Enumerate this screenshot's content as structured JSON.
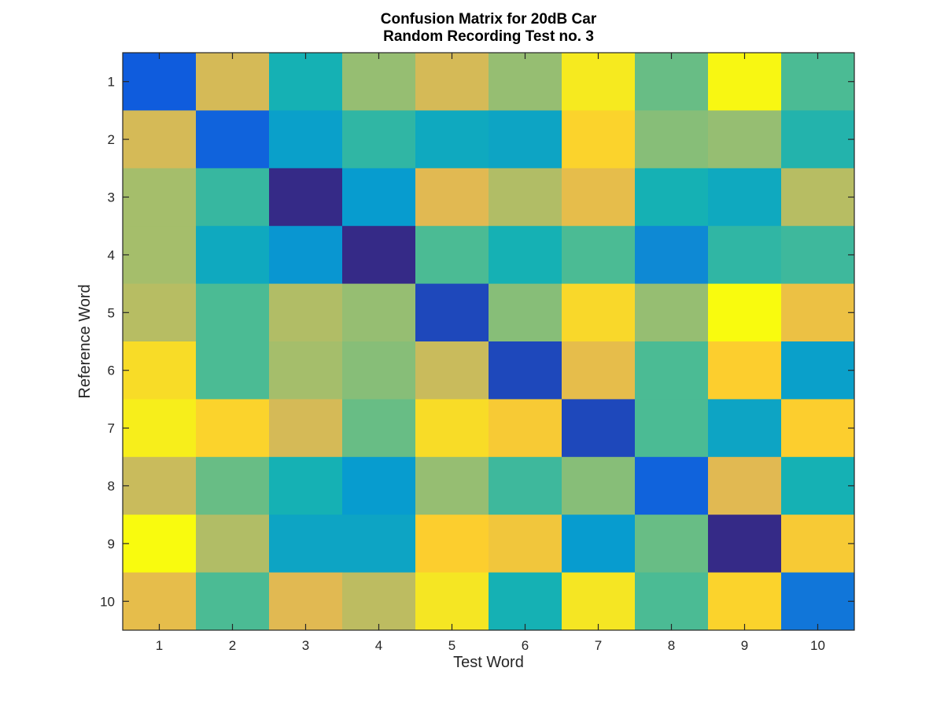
{
  "chart_data": {
    "type": "heatmap",
    "title": [
      "Confusion Matrix for 20dB Car",
      "Random Recording Test no. 3"
    ],
    "xlabel": "Test Word",
    "ylabel": "Reference Word",
    "x_categories": [
      "1",
      "2",
      "3",
      "4",
      "5",
      "6",
      "7",
      "8",
      "9",
      "10"
    ],
    "y_categories": [
      "1",
      "2",
      "3",
      "4",
      "5",
      "6",
      "7",
      "8",
      "9",
      "10"
    ],
    "colormap": "parula",
    "value_range": [
      0,
      1
    ],
    "values": [
      [
        0.1,
        0.68,
        0.4,
        0.58,
        0.68,
        0.58,
        0.92,
        0.52,
        0.98,
        0.48
      ],
      [
        0.68,
        0.12,
        0.32,
        0.44,
        0.36,
        0.34,
        0.82,
        0.56,
        0.58,
        0.42
      ],
      [
        0.6,
        0.45,
        0.0,
        0.3,
        0.7,
        0.62,
        0.72,
        0.4,
        0.36,
        0.63
      ],
      [
        0.6,
        0.36,
        0.28,
        0.0,
        0.48,
        0.4,
        0.48,
        0.24,
        0.44,
        0.46
      ],
      [
        0.63,
        0.48,
        0.62,
        0.58,
        0.06,
        0.56,
        0.84,
        0.58,
        1.0,
        0.74
      ],
      [
        0.86,
        0.48,
        0.6,
        0.56,
        0.66,
        0.06,
        0.72,
        0.48,
        0.8,
        0.32
      ],
      [
        0.94,
        0.82,
        0.68,
        0.52,
        0.86,
        0.78,
        0.06,
        0.48,
        0.34,
        0.8
      ],
      [
        0.66,
        0.52,
        0.4,
        0.3,
        0.58,
        0.46,
        0.56,
        0.12,
        0.7,
        0.4
      ],
      [
        1.0,
        0.62,
        0.34,
        0.34,
        0.8,
        0.76,
        0.3,
        0.52,
        0.0,
        0.78
      ],
      [
        0.72,
        0.48,
        0.7,
        0.64,
        0.9,
        0.4,
        0.9,
        0.48,
        0.82,
        0.18
      ]
    ],
    "grid": false,
    "colorbar": false
  }
}
